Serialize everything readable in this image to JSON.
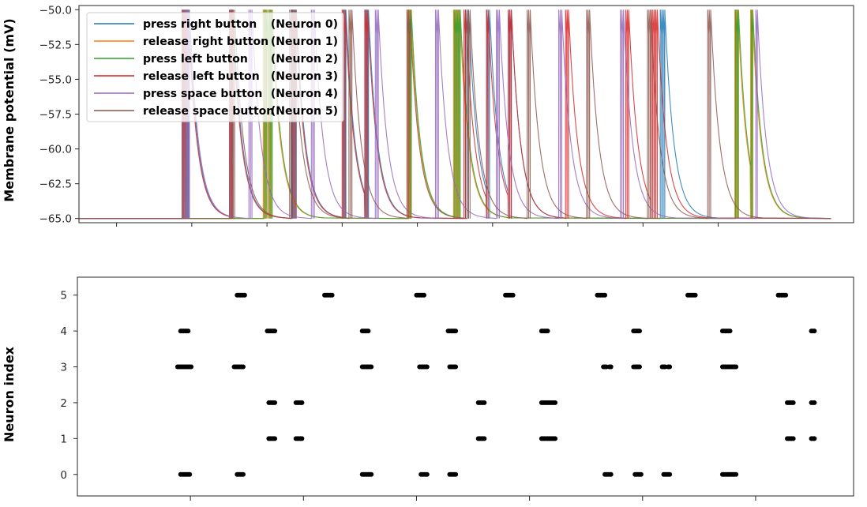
{
  "chart_data": [
    {
      "type": "line",
      "ylabel": "Membrane potential (mV)",
      "xlabel": "",
      "ylim": [
        -65.3,
        -49.7
      ],
      "yticks": [
        "−50.0",
        "−52.5",
        "−55.0",
        "−57.5",
        "−60.0",
        "−62.5",
        "−65.0"
      ],
      "ytick_values": [
        -50,
        -52.5,
        -55,
        -57.5,
        -60,
        -62.5,
        -65
      ],
      "xlim": [
        0,
        1030
      ],
      "xticks": [
        50,
        150,
        250,
        350,
        450,
        550,
        650,
        750,
        850
      ],
      "x_tick_labels_visible": false,
      "resting_potential": -65,
      "threshold": -50,
      "legend": {
        "position": "top-left",
        "entries": [
          {
            "label": "press right button",
            "neuron": "(Neuron 0)",
            "color": "#1f77b4"
          },
          {
            "label": "release right button",
            "neuron": "(Neuron 1)",
            "color": "#ff7f0e"
          },
          {
            "label": "press left button",
            "neuron": "(Neuron 2)",
            "color": "#2ca02c"
          },
          {
            "label": "release left button",
            "neuron": "(Neuron 3)",
            "color": "#d62728"
          },
          {
            "label": "press space button",
            "neuron": "(Neuron 4)",
            "color": "#9467bd"
          },
          {
            "label": "release space button",
            "neuron": "(Neuron 5)",
            "color": "#8c564b"
          }
        ]
      },
      "series": [
        {
          "neuron": 0,
          "color": "#1f77b4",
          "spikes": [
            138,
            140,
            142,
            144,
            146,
            201,
            203,
            205,
            283,
            285,
            287,
            289,
            351,
            353,
            355,
            381,
            383,
            385,
            514,
            516,
            518,
            542,
            544,
            546,
            571,
            573,
            575,
            773,
            775,
            777,
            779
          ]
        },
        {
          "neuron": 1,
          "color": "#ff7f0e",
          "spikes": [
            245,
            247,
            249,
            252,
            254,
            256,
            437,
            439,
            441,
            498,
            500,
            502,
            504,
            506,
            872,
            874,
            876,
            893,
            895
          ]
        },
        {
          "neuron": 2,
          "color": "#2ca02c",
          "spikes": [
            246,
            248,
            250,
            253,
            255,
            257,
            438,
            440,
            442,
            499,
            501,
            503,
            505,
            507,
            873,
            875,
            877,
            894,
            896
          ]
        },
        {
          "neuron": 3,
          "color": "#d62728",
          "spikes": [
            137,
            139,
            141,
            143,
            145,
            200,
            202,
            204,
            282,
            284,
            286,
            288,
            350,
            352,
            354,
            380,
            382,
            384,
            512,
            514,
            542,
            544,
            571,
            573,
            575,
            647,
            649,
            651,
            727,
            729,
            731,
            761,
            763,
            765,
            767,
            769
          ]
        },
        {
          "neuron": 4,
          "color": "#9467bd",
          "spikes": [
            143,
            145,
            147,
            226,
            228,
            230,
            309,
            311,
            313,
            394,
            396,
            398,
            474,
            476,
            478,
            555,
            557,
            559,
            638,
            640,
            642,
            720,
            722,
            724,
            900,
            902
          ]
        },
        {
          "neuron": 5,
          "color": "#8c564b",
          "spikes": [
            203,
            205,
            207,
            280,
            282,
            284,
            359,
            361,
            363,
            436,
            438,
            440,
            516,
            518,
            520,
            596,
            598,
            600,
            675,
            677,
            679,
            756,
            758,
            760,
            836,
            838,
            840
          ]
        }
      ]
    },
    {
      "type": "scatter",
      "ylabel": "Neuron index",
      "xlabel": "",
      "ylim": [
        -0.6,
        5.5
      ],
      "yticks": [
        "0",
        "1",
        "2",
        "3",
        "4",
        "5"
      ],
      "ytick_values": [
        0,
        1,
        2,
        3,
        4,
        5
      ],
      "xlim": [
        0,
        1030
      ],
      "xticks": [
        150,
        300,
        450,
        600,
        750,
        900
      ],
      "x_tick_labels_visible": false,
      "marker_color": "#000000",
      "points": [
        {
          "neuron": 0,
          "x": [
            137,
            139,
            141,
            143,
            145,
            147,
            149,
            212,
            214,
            216,
            218,
            220,
            378,
            380,
            382,
            384,
            386,
            388,
            390,
            456,
            458,
            460,
            462,
            464,
            494,
            496,
            498,
            500,
            502,
            700,
            702,
            704,
            706,
            708,
            740,
            742,
            744,
            746,
            748,
            778,
            780,
            782,
            784,
            786,
            856,
            858,
            860,
            862,
            864,
            866,
            868,
            870,
            872,
            874
          ]
        },
        {
          "neuron": 1,
          "x": [
            254,
            256,
            258,
            260,
            262,
            290,
            292,
            294,
            296,
            298,
            532,
            534,
            536,
            538,
            540,
            616,
            618,
            620,
            622,
            624,
            626,
            628,
            630,
            632,
            634,
            942,
            944,
            946,
            948,
            950,
            974,
            976,
            978
          ]
        },
        {
          "neuron": 2,
          "x": [
            254,
            256,
            258,
            260,
            262,
            290,
            292,
            294,
            296,
            298,
            532,
            534,
            536,
            538,
            540,
            616,
            618,
            620,
            622,
            624,
            626,
            628,
            630,
            632,
            634,
            942,
            944,
            946,
            948,
            950,
            974,
            976,
            978
          ]
        },
        {
          "neuron": 3,
          "x": [
            133,
            135,
            137,
            139,
            141,
            143,
            145,
            147,
            149,
            151,
            208,
            210,
            212,
            214,
            216,
            218,
            220,
            378,
            380,
            382,
            384,
            386,
            388,
            390,
            454,
            456,
            458,
            460,
            462,
            464,
            494,
            496,
            498,
            500,
            502,
            698,
            700,
            702,
            706,
            708,
            738,
            740,
            742,
            744,
            746,
            776,
            778,
            780,
            784,
            786,
            856,
            858,
            860,
            862,
            864,
            866,
            868,
            870,
            872,
            874
          ]
        },
        {
          "neuron": 4,
          "x": [
            137,
            139,
            141,
            143,
            145,
            147,
            252,
            254,
            256,
            258,
            260,
            262,
            378,
            380,
            382,
            384,
            386,
            492,
            494,
            496,
            498,
            500,
            502,
            616,
            618,
            620,
            622,
            624,
            738,
            740,
            742,
            744,
            746,
            856,
            858,
            860,
            862,
            864,
            866,
            974,
            976,
            978
          ]
        },
        {
          "neuron": 5,
          "x": [
            212,
            214,
            216,
            218,
            220,
            222,
            328,
            330,
            332,
            334,
            336,
            338,
            450,
            452,
            454,
            456,
            458,
            460,
            568,
            570,
            572,
            574,
            576,
            578,
            690,
            692,
            694,
            696,
            698,
            700,
            810,
            812,
            814,
            816,
            818,
            820,
            930,
            932,
            934,
            936,
            938,
            940
          ]
        }
      ]
    }
  ]
}
